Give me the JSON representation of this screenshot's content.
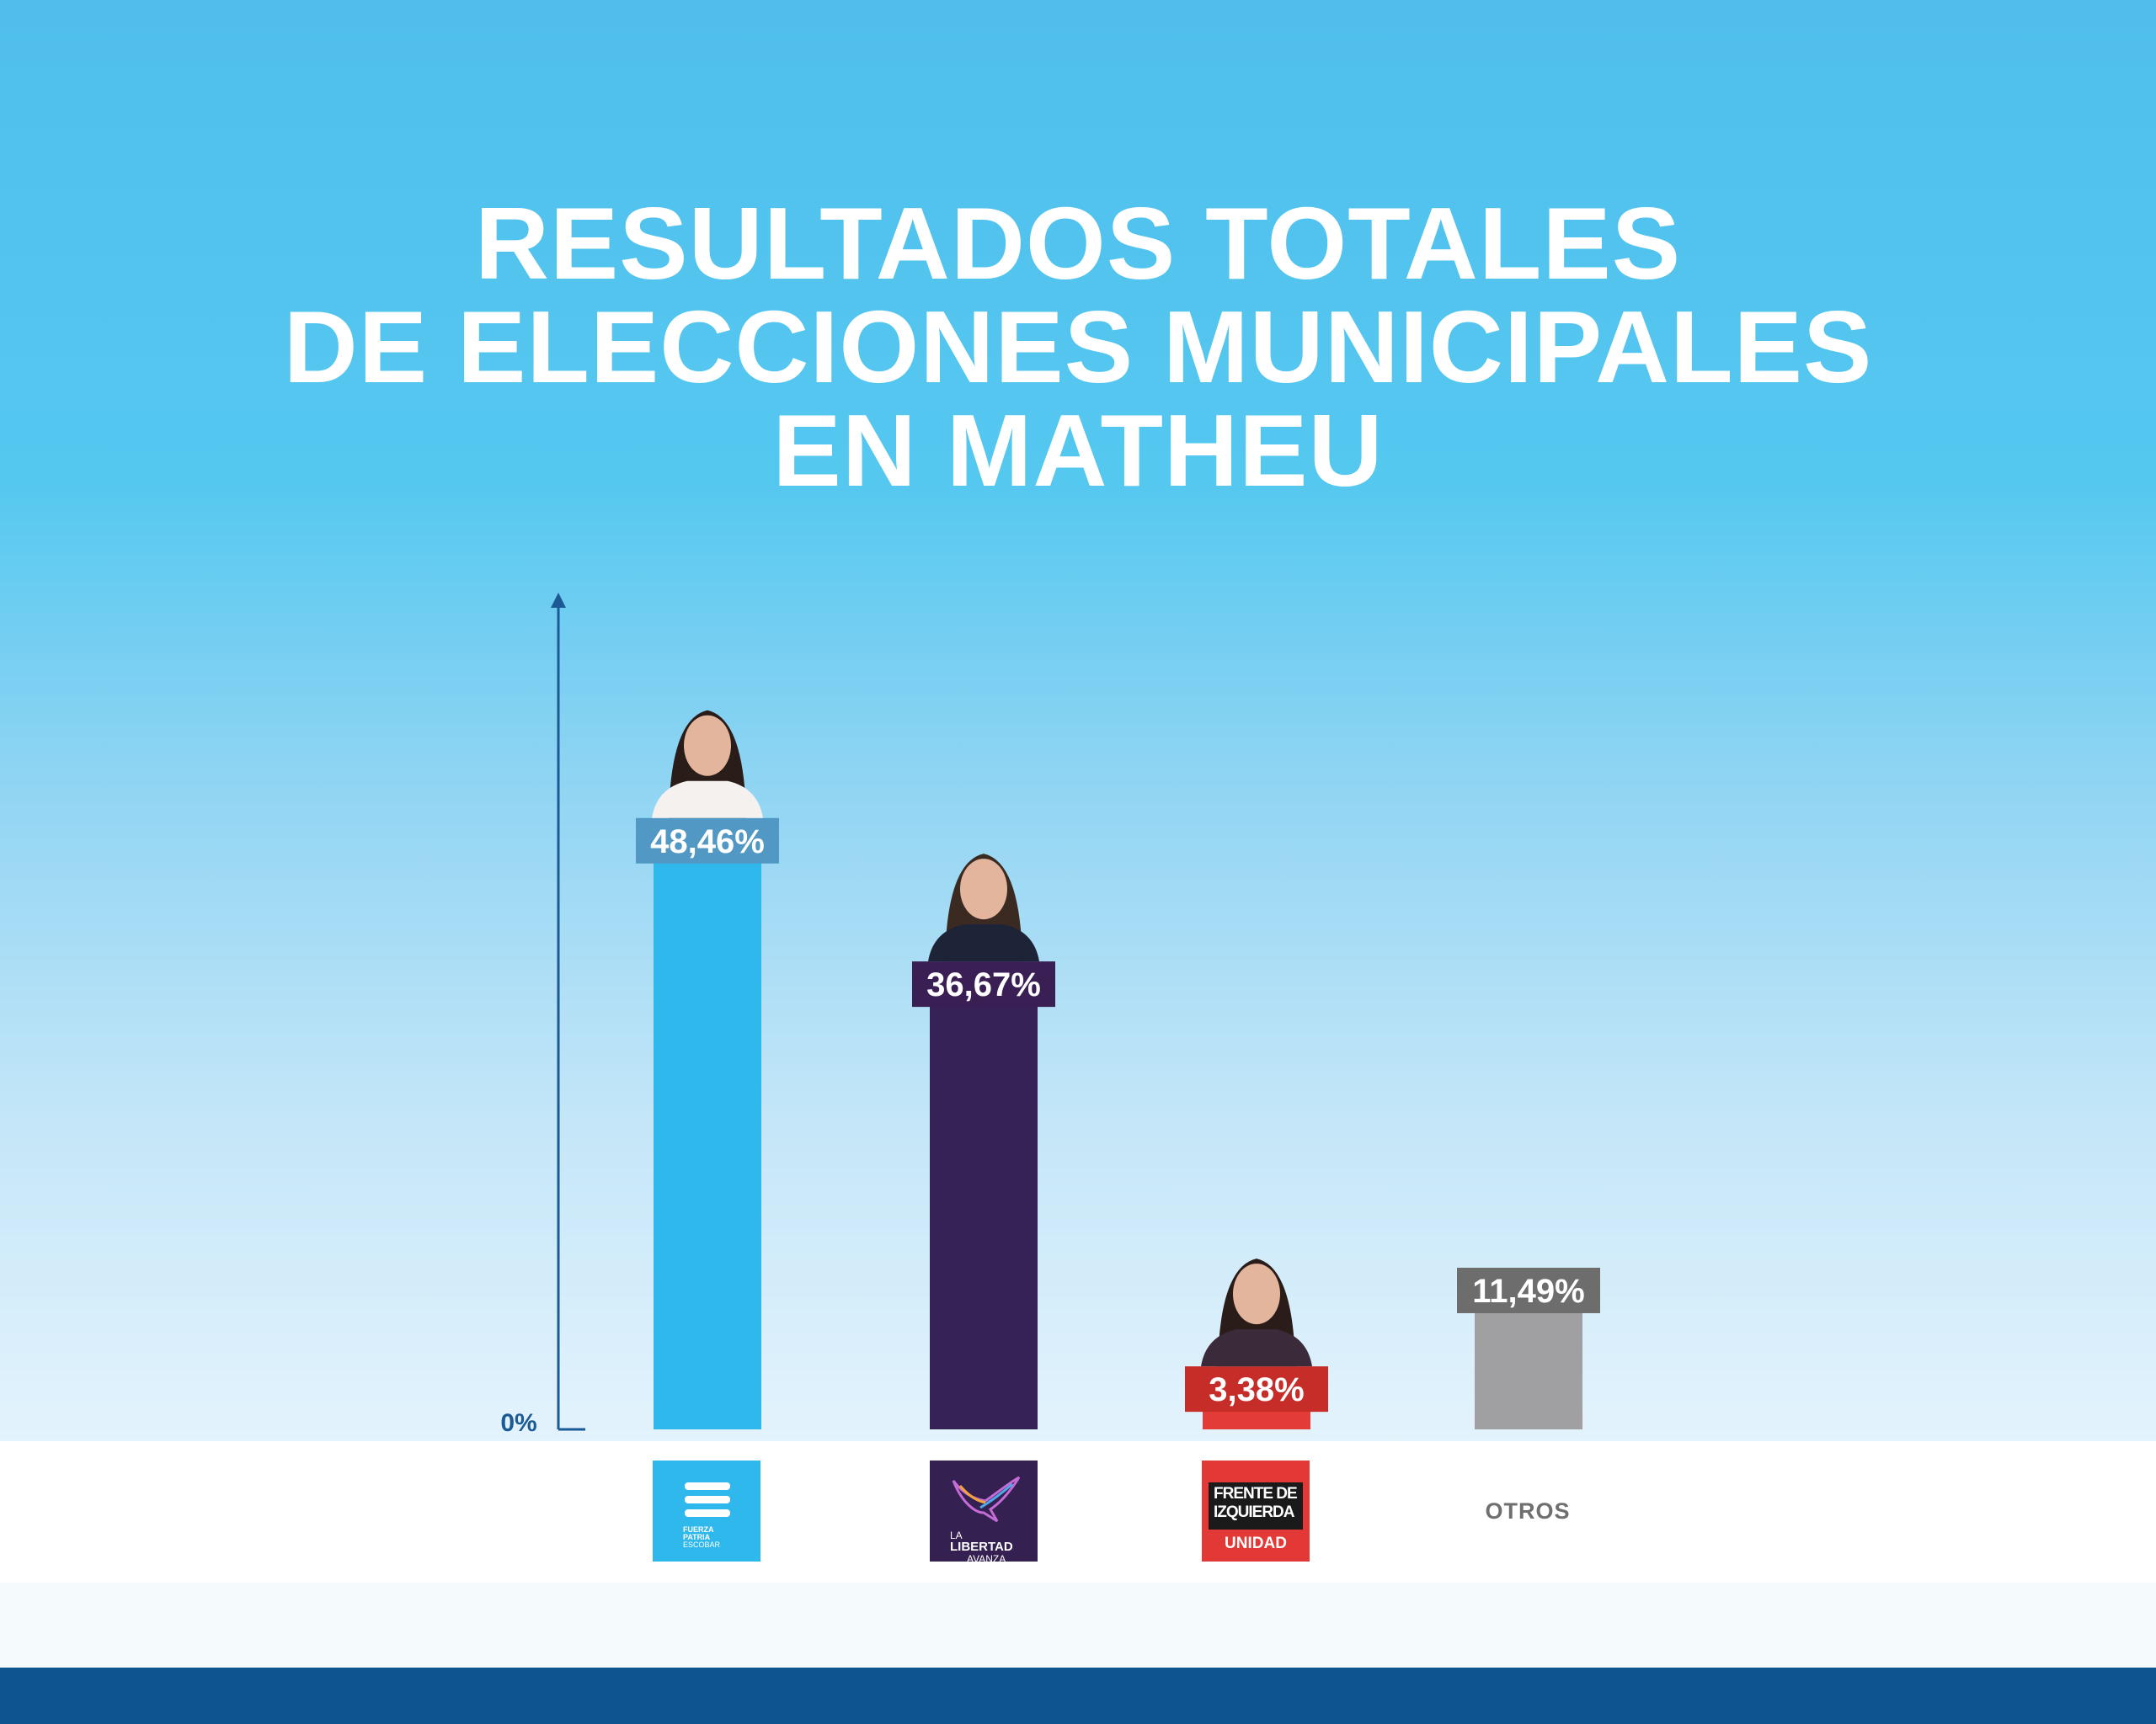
{
  "title": {
    "line1": "RESULTADOS TOTALES",
    "line2": "DE ELECCIONES MUNICIPALES",
    "line3": "EN MATHEU"
  },
  "chart_data": {
    "type": "bar",
    "categories": [
      "Fuerza Patria",
      "La Libertad Avanza",
      "Frente de Izquierda Unidad",
      "OTROS"
    ],
    "values": [
      48.46,
      36.67,
      3.38,
      11.49
    ],
    "value_labels": [
      "48,46%",
      "36,67%",
      "3,38%",
      "11,49%"
    ],
    "ylabel_origin": "0%",
    "ylim": [
      0,
      55
    ],
    "grid": false,
    "legend": "none",
    "bar_colors": [
      "#2fb8ec",
      "#362254",
      "#e33b37",
      "#a0a0a2"
    ],
    "label_colors": [
      "#5198c4",
      "#3a1f55",
      "#c62c28",
      "#6d6d6d"
    ]
  },
  "logos": {
    "fp_line1": "FUERZA",
    "fp_line2": "PATRIA",
    "fp_line3": "ESCOBAR",
    "lla_line1": "LA",
    "lla_line2": "LIBERTAD",
    "lla_line3": "AVANZA",
    "fit_line1": "FRENTE DE",
    "fit_line2": "IZQUIERDA",
    "fit_sub": "UNIDAD",
    "otros": "OTROS"
  },
  "icons": [
    "candidate-photo-icon",
    "bird-icon",
    "flag-stripes-icon"
  ],
  "colors": {
    "footer": "#0d5590",
    "axis": "#1b5a94"
  }
}
